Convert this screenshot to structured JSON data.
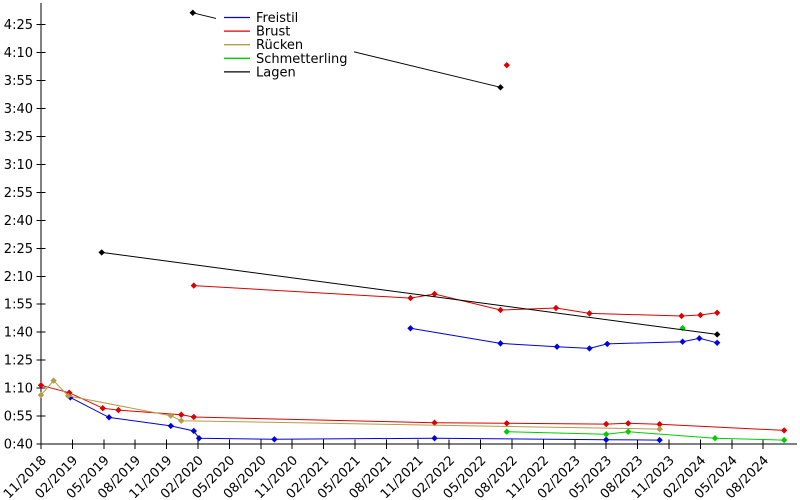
{
  "page": {
    "background": "#ffffff"
  },
  "chart_data": {
    "type": "line",
    "title": "",
    "xlabel": "",
    "ylabel": "",
    "grid": false,
    "x_axis": {
      "tick_labels": [
        "11/2018",
        "02/2019",
        "05/2019",
        "08/2019",
        "11/2019",
        "02/2020",
        "05/2020",
        "08/2020",
        "11/2020",
        "02/2021",
        "05/2021",
        "08/2021",
        "11/2021",
        "02/2022",
        "05/2022",
        "08/2022",
        "11/2022",
        "02/2023",
        "05/2023",
        "08/2023",
        "11/2023",
        "02/2024",
        "05/2024",
        "08/2024"
      ],
      "tick_months": [
        0,
        3,
        6,
        9,
        12,
        15,
        18,
        21,
        24,
        27,
        30,
        33,
        36,
        39,
        42,
        45,
        48,
        51,
        54,
        57,
        60,
        63,
        66,
        69
      ],
      "label_rotation_deg": 45
    },
    "y_axis": {
      "tick_labels": [
        "0:40",
        "0:55",
        "1:10",
        "1:25",
        "1:40",
        "1:55",
        "2:10",
        "2:25",
        "2:40",
        "2:55",
        "3:10",
        "3:25",
        "3:40",
        "3:55",
        "4:10",
        "4:25"
      ],
      "tick_seconds": [
        40,
        55,
        70,
        85,
        100,
        115,
        130,
        145,
        160,
        175,
        190,
        205,
        220,
        235,
        250,
        265
      ],
      "range_seconds": [
        40,
        272
      ]
    },
    "legend": {
      "position": "upper-left-inset",
      "entries": [
        {
          "label": "Freistil",
          "color": "#0000dd"
        },
        {
          "label": "Brust",
          "color": "#dd0000"
        },
        {
          "label": "Rücken",
          "color": "#b59b45"
        },
        {
          "label": "Schmetterling",
          "color": "#00cc00"
        },
        {
          "label": "Lagen",
          "color": "#000000"
        }
      ]
    },
    "series": [
      {
        "name": "Freistil",
        "color": "#0000dd",
        "segments": [
          [
            {
              "date": "02/2019",
              "m": 2.8,
              "s": 65.0,
              "t": "1:05"
            },
            {
              "date": "05/2019",
              "m": 6.5,
              "s": 54.3,
              "t": "0:54"
            },
            {
              "date": "11/2019",
              "m": 12.4,
              "s": 49.7,
              "t": "0:50"
            },
            {
              "date": "01/2020",
              "m": 14.6,
              "s": 47.0,
              "t": "0:47"
            },
            {
              "date": "02/2020",
              "m": 15.1,
              "s": 43.1,
              "t": "0:43"
            },
            {
              "date": "09/2020",
              "m": 22.3,
              "s": 42.5,
              "t": "0:42"
            },
            {
              "date": "12/2021",
              "m": 37.6,
              "s": 43.1,
              "t": "0:43"
            },
            {
              "date": "05/2023",
              "m": 54.0,
              "s": 42.3,
              "t": "0:42"
            },
            {
              "date": "10/2023",
              "m": 59.1,
              "s": 42.1,
              "t": "0:42"
            }
          ],
          [
            {
              "date": "10/2021",
              "m": 35.3,
              "s": 102.1,
              "t": "1:42"
            },
            {
              "date": "07/2022",
              "m": 43.9,
              "s": 94.0,
              "t": "1:34"
            },
            {
              "date": "12/2022",
              "m": 49.3,
              "s": 92.2,
              "t": "1:32"
            },
            {
              "date": "03/2023",
              "m": 52.4,
              "s": 91.3,
              "t": "1:31"
            },
            {
              "date": "05/2023",
              "m": 54.1,
              "s": 93.7,
              "t": "1:34"
            },
            {
              "date": "12/2023",
              "m": 61.3,
              "s": 94.9,
              "t": "1:35"
            },
            {
              "date": "02/2024",
              "m": 62.9,
              "s": 96.7,
              "t": "1:37"
            },
            {
              "date": "03/2024",
              "m": 64.6,
              "s": 94.3,
              "t": "1:34"
            }
          ]
        ]
      },
      {
        "name": "Brust",
        "color": "#dd0000",
        "segments": [
          [
            {
              "date": "11/2018",
              "m": 0.0,
              "s": 71.5,
              "t": "1:12"
            },
            {
              "date": "02/2019",
              "m": 2.7,
              "s": 67.5,
              "t": "1:08"
            },
            {
              "date": "05/2019",
              "m": 5.9,
              "s": 59.2,
              "t": "0:59"
            },
            {
              "date": "06/2019",
              "m": 7.4,
              "s": 58.2,
              "t": "0:58"
            },
            {
              "date": "12/2019",
              "m": 13.4,
              "s": 55.7,
              "t": "0:56"
            },
            {
              "date": "01/2020",
              "m": 14.6,
              "s": 54.5,
              "t": "0:55"
            },
            {
              "date": "12/2021",
              "m": 37.6,
              "s": 51.4,
              "t": "0:51"
            },
            {
              "date": "07/2022",
              "m": 44.5,
              "s": 51.1,
              "t": "0:51"
            },
            {
              "date": "05/2023",
              "m": 54.0,
              "s": 50.7,
              "t": "0:51"
            },
            {
              "date": "08/2023",
              "m": 56.1,
              "s": 51.1,
              "t": "0:51"
            },
            {
              "date": "10/2023",
              "m": 59.1,
              "s": 50.6,
              "t": "0:51"
            },
            {
              "date": "09/2024",
              "m": 71.0,
              "s": 47.3,
              "t": "0:47"
            }
          ],
          [
            {
              "date": "01/2020",
              "m": 14.6,
              "s": 125.0,
              "t": "2:05"
            },
            {
              "date": "10/2021",
              "m": 35.3,
              "s": 118.3,
              "t": "1:58"
            },
            {
              "date": "12/2021",
              "m": 37.6,
              "s": 120.5,
              "t": "2:01"
            },
            {
              "date": "07/2022",
              "m": 43.9,
              "s": 111.9,
              "t": "1:52"
            },
            {
              "date": "12/2022",
              "m": 49.2,
              "s": 113.0,
              "t": "1:53"
            },
            {
              "date": "03/2023",
              "m": 52.4,
              "s": 110.1,
              "t": "1:50"
            },
            {
              "date": "12/2023",
              "m": 61.2,
              "s": 108.7,
              "t": "1:49"
            },
            {
              "date": "02/2024",
              "m": 63.0,
              "s": 109.2,
              "t": "1:49"
            },
            {
              "date": "03/2024",
              "m": 64.6,
              "s": 110.4,
              "t": "1:50"
            }
          ],
          [
            {
              "date": "07/2022",
              "m": 44.5,
              "s": 243.3,
              "t": "4:03"
            }
          ]
        ]
      },
      {
        "name": "Rücken",
        "color": "#b59b45",
        "segments": [
          [
            {
              "date": "11/2018",
              "m": 0.0,
              "s": 66.3,
              "t": "1:06"
            },
            {
              "date": "12/2018",
              "m": 1.2,
              "s": 74.0,
              "t": "1:14"
            },
            {
              "date": "02/2019",
              "m": 2.6,
              "s": 65.8,
              "t": "1:06"
            },
            {
              "date": "11/2019",
              "m": 12.4,
              "s": 55.2,
              "t": "0:55"
            },
            {
              "date": "12/2019",
              "m": 13.4,
              "s": 52.5,
              "t": "0:53"
            },
            {
              "date": "10/2023",
              "m": 59.1,
              "s": 48.0,
              "t": "0:48"
            }
          ]
        ]
      },
      {
        "name": "Schmetterling",
        "color": "#00cc00",
        "segments": [
          [
            {
              "date": "07/2022",
              "m": 44.5,
              "s": 46.6,
              "t": "0:47"
            },
            {
              "date": "05/2023",
              "m": 54.0,
              "s": 45.2,
              "t": "0:45"
            },
            {
              "date": "08/2023",
              "m": 56.1,
              "s": 46.6,
              "t": "0:47"
            },
            {
              "date": "03/2024",
              "m": 64.4,
              "s": 43.1,
              "t": "0:43"
            },
            {
              "date": "09/2024",
              "m": 71.0,
              "s": 42.1,
              "t": "0:42"
            }
          ],
          [
            {
              "date": "12/2023",
              "m": 61.3,
              "s": 102.2,
              "t": "1:42"
            }
          ]
        ]
      },
      {
        "name": "Lagen",
        "color": "#000000",
        "segments": [
          [
            {
              "date": "04/2019",
              "m": 5.8,
              "s": 142.8,
              "t": "2:23"
            },
            {
              "date": "03/2024",
              "m": 64.6,
              "s": 98.8,
              "t": "1:39"
            }
          ],
          [
            {
              "date": "01/2020",
              "m": 14.5,
              "s": 271.4,
              "t": "4:31"
            },
            {
              "date": "07/2022",
              "m": 43.9,
              "s": 231.4,
              "t": "3:51"
            }
          ]
        ]
      }
    ]
  }
}
